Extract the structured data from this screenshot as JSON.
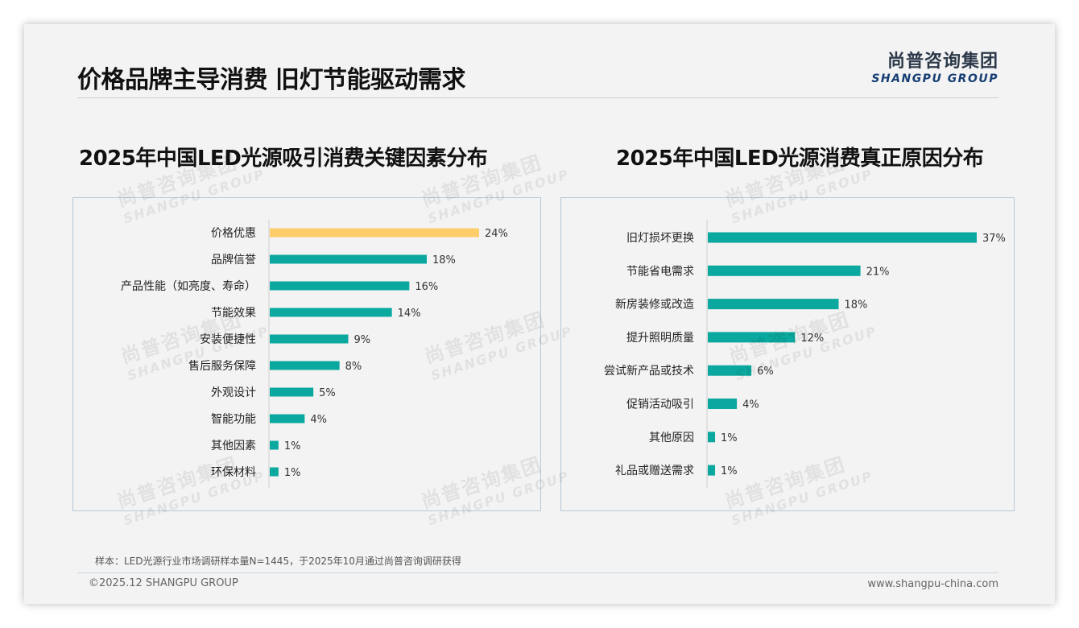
{
  "header": {
    "title": "价格品牌主导消费 旧灯节能驱动需求",
    "logo_cn": "尚普咨询集团",
    "logo_en": "SHANGPU GROUP"
  },
  "watermark": {
    "cn": "尚普咨询集团",
    "en": "SHANGPU GROUP"
  },
  "colors": {
    "accent": "#0aa89e",
    "highlight": "#fccd68",
    "axis": "#cfcfcf",
    "label": "#222222"
  },
  "chart_data": [
    {
      "type": "bar",
      "orientation": "horizontal",
      "title": "2025年中国LED光源吸引消费关键因素分布",
      "categories": [
        "价格优惠",
        "品牌信誉",
        "产品性能（如亮度、寿命）",
        "节能效果",
        "安装便捷性",
        "售后服务保障",
        "外观设计",
        "智能功能",
        "其他因素",
        "环保材料"
      ],
      "values": [
        24,
        18,
        16,
        14,
        9,
        8,
        5,
        4,
        1,
        1
      ],
      "value_labels": [
        "24%",
        "18%",
        "16%",
        "14%",
        "9%",
        "8%",
        "5%",
        "4%",
        "1%",
        "1%"
      ],
      "unit": "%",
      "highlight_index": 0,
      "xlim": [
        0,
        30
      ],
      "grid": false,
      "xlabel": "",
      "ylabel": ""
    },
    {
      "type": "bar",
      "orientation": "horizontal",
      "title": "2025年中国LED光源消费真正原因分布",
      "categories": [
        "旧灯损坏更换",
        "节能省电需求",
        "新房装修或改造",
        "提升照明质量",
        "尝试新产品或技术",
        "促销活动吸引",
        "其他原因",
        "礼品或赠送需求"
      ],
      "values": [
        37,
        21,
        18,
        12,
        6,
        4,
        1,
        1
      ],
      "value_labels": [
        "37%",
        "21%",
        "18%",
        "12%",
        "6%",
        "4%",
        "1%",
        "1%"
      ],
      "unit": "%",
      "highlight_index": null,
      "xlim": [
        0,
        40
      ],
      "grid": false,
      "xlabel": "",
      "ylabel": ""
    }
  ],
  "footer": {
    "note": "样本：LED光源行业市场调研样本量N=1445，于2025年10月通过尚普咨询调研获得",
    "copyright": "©2025.12 SHANGPU GROUP",
    "website": "www.shangpu-china.com"
  }
}
